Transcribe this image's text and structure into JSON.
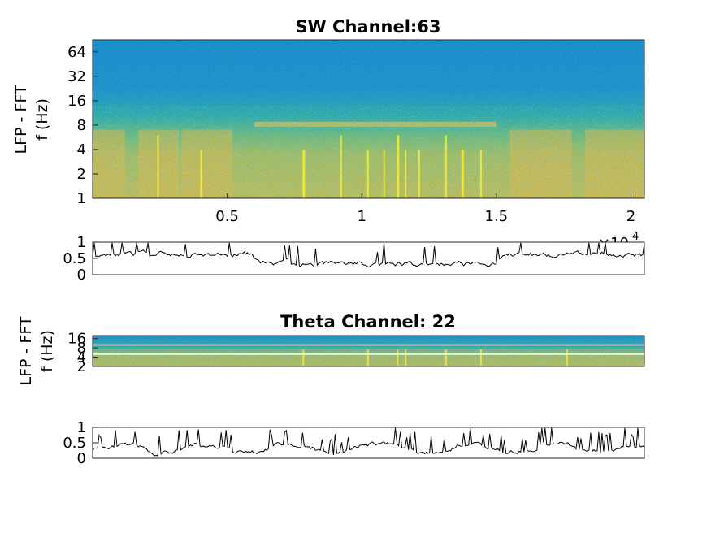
{
  "figure": {
    "panels": [
      {
        "id": "sw-spectrogram",
        "title": "SW Channel:63",
        "ylabel_line1": "LFP - FFT",
        "ylabel_line2": "f (Hz)"
      },
      {
        "id": "sw-trace",
        "title": ""
      },
      {
        "id": "theta-spectrogram",
        "title": "Theta Channel: 22",
        "ylabel_line1": "LFP - FFT",
        "ylabel_line2": "f (Hz)"
      },
      {
        "id": "theta-trace",
        "title": ""
      }
    ],
    "x_exponent_base": "×10",
    "x_exponent_power": "4"
  },
  "chart_data": [
    {
      "type": "heatmap",
      "title": "SW Channel:63",
      "ylabel": "LFP - FFT f (Hz)",
      "yscale": "log2",
      "ylim": [
        1,
        90
      ],
      "yticks": [
        1,
        2,
        4,
        8,
        16,
        32,
        64
      ],
      "yticklabels": [
        "1",
        "2",
        "4",
        "8",
        "16",
        "32",
        "64"
      ],
      "xlim": [
        0,
        20500
      ],
      "xticks": [
        5000,
        10000,
        15000,
        20000
      ],
      "xticklabels": [
        "0.5",
        "1",
        "1.5",
        "2"
      ],
      "x_exponent": "×10^4",
      "colormap": "parula",
      "notable_features": "horizontal band near 8 Hz between 6000 and 15000; bright vertical stripes (high low-frequency power) around 7800, 11300, 13100"
    },
    {
      "type": "line",
      "ylim": [
        0,
        1
      ],
      "yticks": [
        0,
        0.5,
        1
      ],
      "yticklabels": [
        "0",
        "0.5",
        "1"
      ],
      "xlim": [
        0,
        20500
      ],
      "color": "#000000",
      "description": "SW power trace, mostly 0.5-0.7, dips to ~0.25-0.4 between 6000 and 15000 with spikes near 1"
    },
    {
      "type": "heatmap",
      "title": "Theta Channel: 22",
      "ylabel": "LFP - FFT f (Hz)",
      "yscale": "log2",
      "ylim": [
        2,
        20
      ],
      "yticks": [
        2,
        4,
        8,
        16
      ],
      "yticklabels": [
        "2",
        "4",
        "8",
        "16"
      ],
      "xlim": [
        0,
        20500
      ],
      "colormap": "parula",
      "reference_lines_hz": [
        5,
        10
      ]
    },
    {
      "type": "line",
      "ylim": [
        0,
        1
      ],
      "yticks": [
        0,
        0.5,
        1
      ],
      "yticklabels": [
        "0",
        "0.5",
        "1"
      ],
      "xlim": [
        0,
        20500
      ],
      "color": "#000000",
      "description": "Theta power trace, baseline ~0.3, frequent bursts to ~0.8-0.95"
    }
  ]
}
